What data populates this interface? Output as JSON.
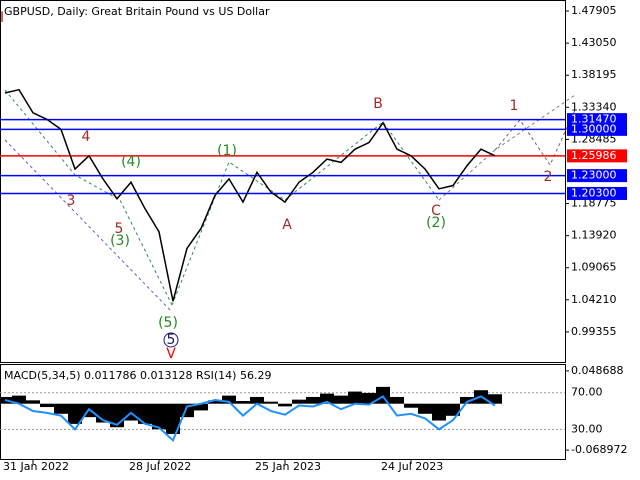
{
  "chart_data": [
    {
      "type": "line",
      "title": "GBPUSD, Daily:  Great Britain Pound vs US Dollar",
      "categories": [
        null,
        null,
        "31 Jan 2022",
        null,
        null,
        null,
        null,
        null,
        null,
        null,
        null,
        "28 Jul 2022",
        null,
        null,
        null,
        null,
        null,
        null,
        null,
        null,
        "25 Jan 2023",
        null,
        null,
        null,
        null,
        null,
        null,
        null,
        null,
        "24 Jul 2023",
        null,
        null,
        null,
        null,
        null,
        null
      ],
      "series": [
        {
          "color": "#000000",
          "values": [
            1.355,
            1.36,
            1.325,
            1.315,
            1.3,
            1.24,
            1.26,
            1.225,
            1.195,
            1.22,
            1.18,
            1.145,
            1.04,
            1.12,
            1.15,
            1.2,
            1.225,
            1.19,
            1.235,
            1.205,
            1.19,
            1.22,
            1.235,
            1.255,
            1.25,
            1.27,
            1.28,
            1.31,
            1.27,
            1.26,
            1.24,
            1.21,
            1.215,
            1.245,
            1.27,
            1.26
          ]
        }
      ],
      "ylim": [
        0.9465,
        1.4957
      ],
      "yticks": [
        1.47905,
        {
          "value": 1.4305,
          "label": "1.43050"
        },
        1.38195,
        {
          "value": 1.3334,
          "label": "1.33340"
        },
        1.28485,
        1.18775,
        {
          "value": 1.1392,
          "label": "1.13920"
        },
        1.09065,
        {
          "value": 1.0421,
          "label": "1.04210"
        },
        0.99355
      ],
      "levels": [
        {
          "value": 1.3147,
          "label": "1.31470",
          "color": "#0000ff"
        },
        {
          "value": 1.3,
          "label": "1.30000",
          "color": "#0000ff"
        },
        {
          "value": 1.25986,
          "label": "1.25986",
          "color": "#ff0000"
        },
        {
          "value": 1.23,
          "label": "1.23000",
          "color": "#0000ff"
        },
        {
          "value": 1.203,
          "label": "1.20300",
          "color": "#0000ff"
        }
      ],
      "annotations": [
        {
          "text": "I",
          "color": "#b22222"
        },
        {
          "text": "4",
          "color": "#a52a2a"
        },
        {
          "text": "3",
          "color": "#a52a2a"
        },
        {
          "text": "5",
          "color": "#a52a2a"
        },
        {
          "text": "(3)",
          "color": "#228b22"
        },
        {
          "text": "(4)",
          "color": "#228b22"
        },
        {
          "text": "(1)",
          "color": "#228b22"
        },
        {
          "text": "(5)",
          "color": "#228b22"
        },
        {
          "text": "5",
          "color": "#191970"
        },
        {
          "text": "V",
          "color": "#ff0000"
        },
        {
          "text": "A",
          "color": "#a52a2a"
        },
        {
          "text": "B",
          "color": "#a52a2a"
        },
        {
          "text": "C",
          "color": "#a52a2a"
        },
        {
          "text": "(2)",
          "color": "#228b22"
        },
        {
          "text": "1",
          "color": "#a52a2a"
        },
        {
          "text": "2",
          "color": "#a52a2a"
        }
      ]
    },
    {
      "type": "macd",
      "title": "MACD(5,34,5) 0.011786 0.013128 RSI(14) 56.29",
      "series": [
        {
          "color": "#000000",
          "values": [
            0.01,
            0.012,
            0.005,
            -0.005,
            -0.015,
            -0.03,
            -0.02,
            -0.028,
            -0.035,
            -0.025,
            -0.03,
            -0.038,
            -0.045,
            -0.02,
            -0.01,
            0.005,
            0.012,
            0.004,
            0.01,
            0.003,
            -0.004,
            0.006,
            0.01,
            0.015,
            0.012,
            0.018,
            0.016,
            0.025,
            0.01,
            -0.006,
            -0.015,
            -0.025,
            -0.018,
            0.01,
            0.02,
            0.014
          ]
        },
        {
          "color": "#1e90ff",
          "axis": "y2",
          "values": [
            62,
            58,
            50,
            48,
            45,
            30,
            52,
            40,
            35,
            48,
            36,
            32,
            18,
            55,
            58,
            62,
            60,
            45,
            58,
            50,
            46,
            56,
            55,
            60,
            52,
            58,
            57,
            66,
            45,
            47,
            42,
            30,
            40,
            60,
            66,
            56
          ]
        }
      ],
      "ylim": [
        -0.08368,
        0.05751
      ],
      "yticks": [
        0.048688,
        -0.068972
      ],
      "y2lim": [
        -3.5,
        100.3
      ],
      "y2ticks": [
        {
          "value": 70,
          "label": "70.00"
        },
        {
          "value": 30,
          "label": "30.00"
        }
      ]
    }
  ]
}
